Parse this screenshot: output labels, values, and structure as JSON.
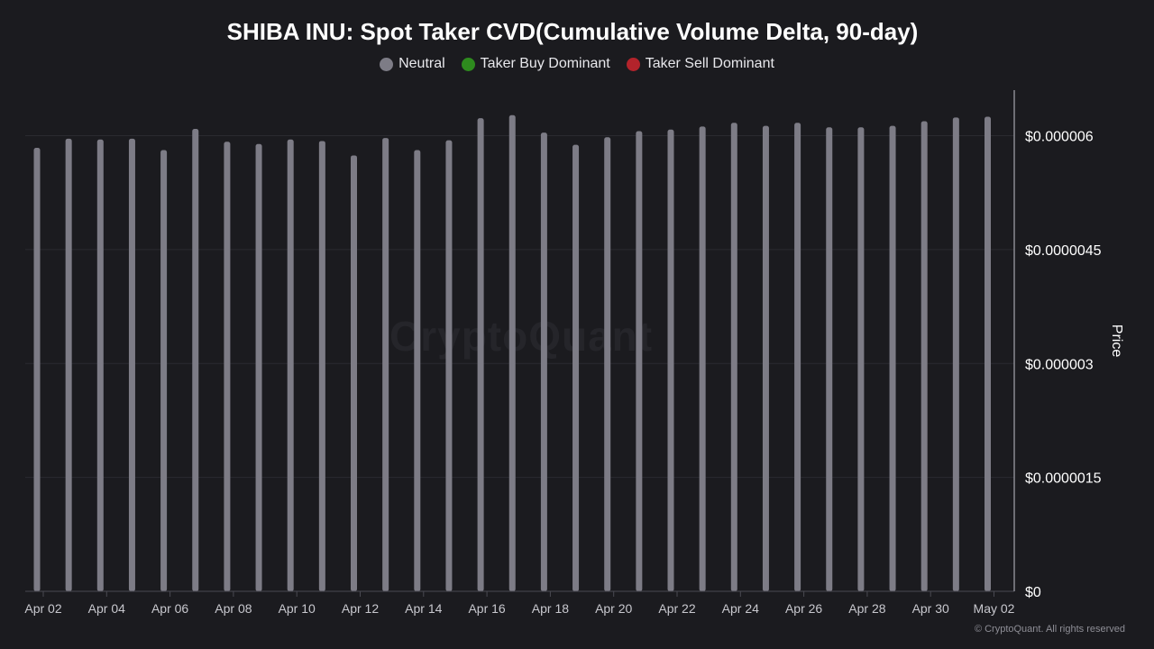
{
  "chart_data": {
    "type": "bar",
    "title": "SHIBA INU: Spot Taker CVD(Cumulative Volume Delta, 90-day)",
    "legend": [
      {
        "name": "Neutral",
        "color": "#7d7c86"
      },
      {
        "name": "Taker Buy Dominant",
        "color": "#2e8b1e"
      },
      {
        "name": "Taker Sell Dominant",
        "color": "#b3232b"
      }
    ],
    "legend_placement": "top-center",
    "ylabel": "Price",
    "ylim": [
      0,
      6.6e-06
    ],
    "y_ticks": [
      {
        "value": 0,
        "label": "$0"
      },
      {
        "value": 1.5e-06,
        "label": "$0.0000015"
      },
      {
        "value": 3e-06,
        "label": "$0.000003"
      },
      {
        "value": 4.5e-06,
        "label": "$0.0000045"
      },
      {
        "value": 6e-06,
        "label": "$0.000006"
      }
    ],
    "x_tick_labels": [
      "Apr 02",
      "Apr 04",
      "Apr 06",
      "Apr 08",
      "Apr 10",
      "Apr 12",
      "Apr 14",
      "Apr 16",
      "Apr 18",
      "Apr 20",
      "Apr 22",
      "Apr 24",
      "Apr 26",
      "Apr 28",
      "Apr 30",
      "May 02"
    ],
    "grid": true,
    "series": [
      {
        "name": "Neutral",
        "color": "#7d7c86",
        "x": [
          "Apr 02",
          "Apr 03",
          "Apr 04",
          "Apr 05",
          "Apr 06",
          "Apr 07",
          "Apr 08",
          "Apr 09",
          "Apr 10",
          "Apr 11",
          "Apr 12",
          "Apr 13",
          "Apr 14",
          "Apr 15",
          "Apr 16",
          "Apr 17",
          "Apr 18",
          "Apr 19",
          "Apr 20",
          "Apr 21",
          "Apr 22",
          "Apr 23",
          "Apr 24",
          "Apr 25",
          "Apr 26",
          "Apr 27",
          "Apr 28",
          "Apr 29",
          "Apr 30",
          "May 01",
          "May 02"
        ],
        "values": [
          5.84e-06,
          5.96e-06,
          5.95e-06,
          5.96e-06,
          5.81e-06,
          6.09e-06,
          5.92e-06,
          5.89e-06,
          5.95e-06,
          5.93e-06,
          5.74e-06,
          5.97e-06,
          5.81e-06,
          5.94e-06,
          6.23e-06,
          6.27e-06,
          6.04e-06,
          5.88e-06,
          5.98e-06,
          6.06e-06,
          6.08e-06,
          6.12e-06,
          6.17e-06,
          6.13e-06,
          6.17e-06,
          6.11e-06,
          6.11e-06,
          6.13e-06,
          6.19e-06,
          6.24e-06,
          6.25e-06
        ]
      }
    ]
  },
  "watermark": "CryptoQuant",
  "copyright": "© CryptoQuant. All rights reserved"
}
